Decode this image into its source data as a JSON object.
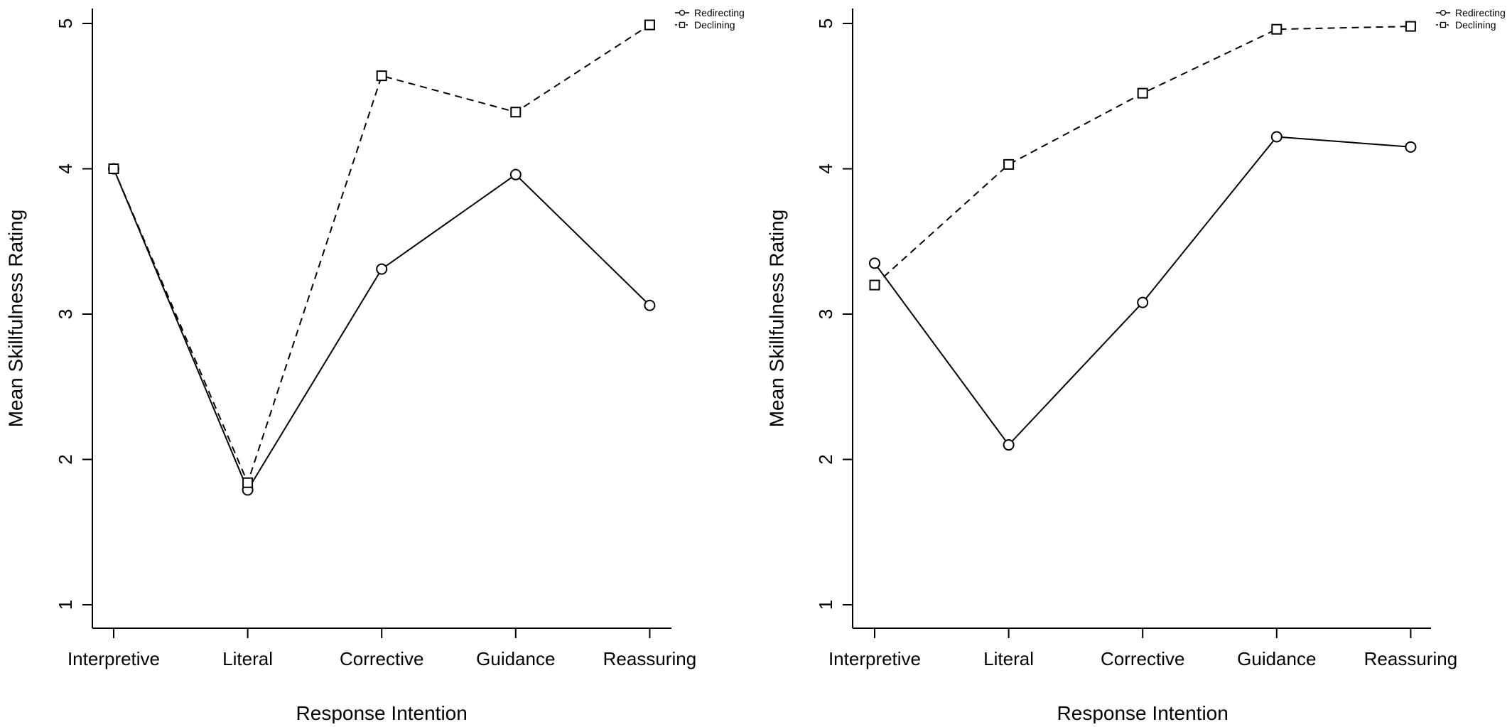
{
  "chart_data": [
    {
      "type": "line",
      "xlabel": "Response Intention",
      "ylabel": "Mean Skillfulness Rating",
      "categories": [
        "Interpretive",
        "Literal",
        "Corrective",
        "Guidance",
        "Reassuring"
      ],
      "ylim": [
        1,
        5
      ],
      "yticks": [
        "1",
        "2",
        "3",
        "4",
        "5"
      ],
      "grid": false,
      "legend_position": "top-right",
      "series": [
        {
          "name": "Redirecting",
          "marker": "circle",
          "line": "solid",
          "color": "#000000",
          "values": [
            4.0,
            1.79,
            3.31,
            3.96,
            3.06
          ]
        },
        {
          "name": "Declining",
          "marker": "square",
          "line": "dashed",
          "color": "#000000",
          "values": [
            4.0,
            1.84,
            4.64,
            4.39,
            4.99
          ]
        }
      ]
    },
    {
      "type": "line",
      "xlabel": "Response Intention",
      "ylabel": "Mean Skillfulness Rating",
      "categories": [
        "Interpretive",
        "Literal",
        "Corrective",
        "Guidance",
        "Reassuring"
      ],
      "ylim": [
        1,
        5
      ],
      "yticks": [
        "1",
        "2",
        "3",
        "4",
        "5"
      ],
      "grid": false,
      "legend_position": "top-right",
      "series": [
        {
          "name": "Redirecting",
          "marker": "circle",
          "line": "solid",
          "color": "#000000",
          "values": [
            3.35,
            2.1,
            3.08,
            4.22,
            4.15
          ]
        },
        {
          "name": "Declining",
          "marker": "square",
          "line": "dashed",
          "color": "#000000",
          "values": [
            3.2,
            4.03,
            4.52,
            4.96,
            4.98
          ]
        }
      ]
    }
  ]
}
